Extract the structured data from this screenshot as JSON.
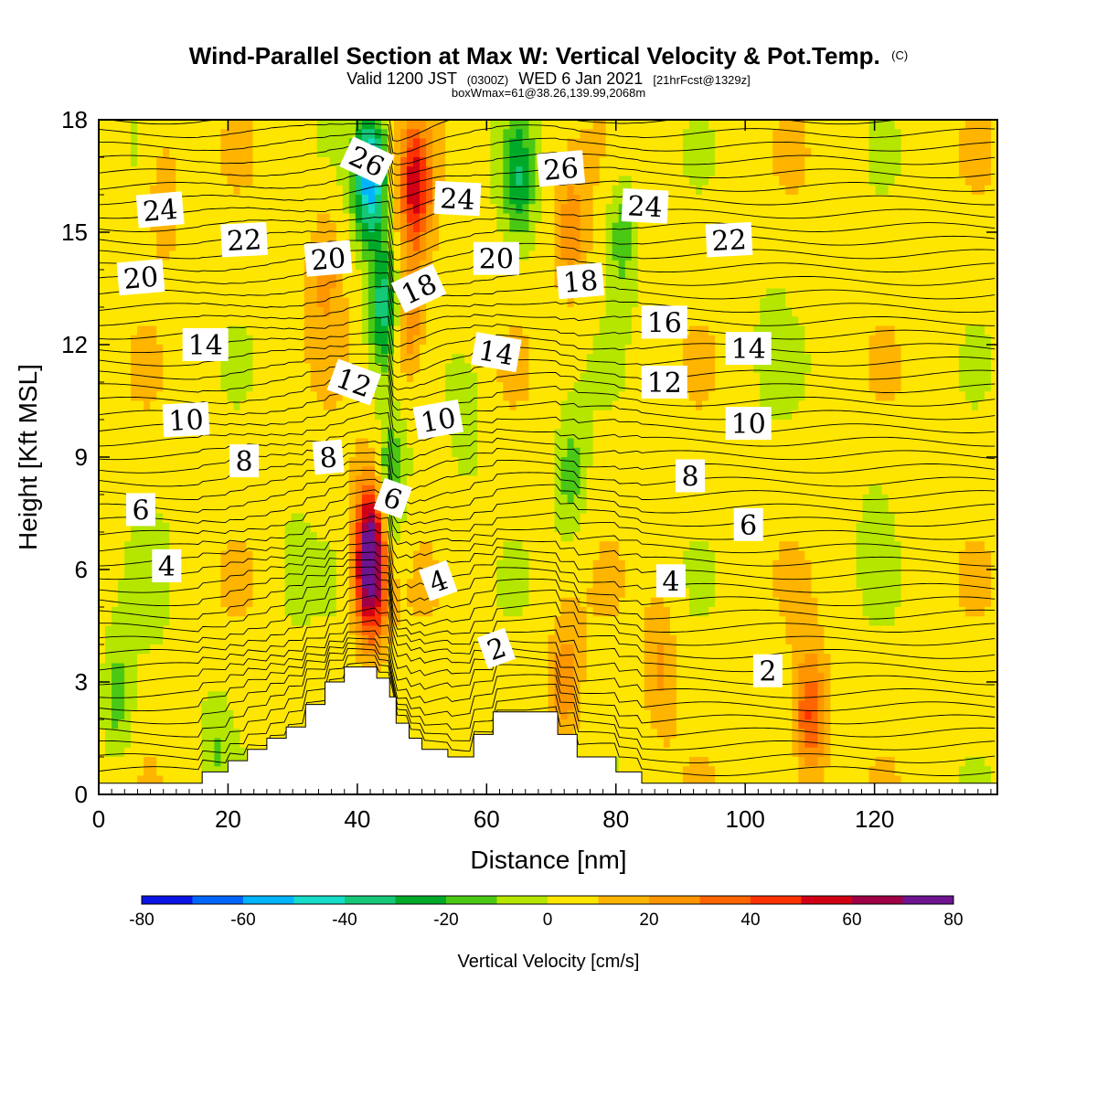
{
  "header": {
    "title": "Wind-Parallel Section at Max W: Vertical Velocity & Pot.Temp.",
    "title_mark": "(C)",
    "subtitle_a": "Valid 1200 JST",
    "subtitle_b": "(0300Z)",
    "subtitle_c": "WED 6 Jan 2021",
    "subtitle_d": "[21hrFcst@1329z]",
    "info": "boxWmax=61@38.26,139.99,2068m"
  },
  "chart_data": {
    "type": "heatmap",
    "title": "Wind-Parallel Section at Max W: Vertical Velocity & Pot.Temp.",
    "xlabel": "Distance [nm]",
    "ylabel": "Height [Kft MSL]",
    "xlim": [
      0,
      139
    ],
    "ylim": [
      0,
      18
    ],
    "xticks": [
      0,
      20,
      40,
      60,
      80,
      100,
      120
    ],
    "yticks": [
      0,
      3,
      6,
      9,
      12,
      15,
      18
    ],
    "colorbar": {
      "label": "Vertical Velocity [cm/s]",
      "ticks": [
        -80,
        -60,
        -40,
        -20,
        0,
        20,
        40,
        60,
        80
      ],
      "bins": [
        -80,
        -70,
        -60,
        -50,
        -40,
        -30,
        -20,
        -10,
        0,
        10,
        20,
        30,
        40,
        50,
        60,
        70,
        80
      ],
      "colors": [
        "#0a14e6",
        "#0066ff",
        "#00b4ff",
        "#14dcc8",
        "#14c878",
        "#00aa28",
        "#4bc814",
        "#b4e600",
        "#ffe600",
        "#ffb400",
        "#ff9600",
        "#ff6400",
        "#ff3200",
        "#d20014",
        "#a00046",
        "#6e1490"
      ]
    },
    "background_w": 5,
    "w_features": [
      {
        "x": 42,
        "z": 5.8,
        "w": 68
      },
      {
        "x": 42,
        "z": 7.3,
        "w": 35
      },
      {
        "x": 45,
        "z": 8.2,
        "w": -30
      },
      {
        "x": 44,
        "z": 13,
        "w": -40
      },
      {
        "x": 42,
        "z": 16.5,
        "w": -62
      },
      {
        "x": 49,
        "z": 16.2,
        "w": 48
      },
      {
        "x": 48,
        "z": 12.5,
        "w": 26
      },
      {
        "x": 35,
        "z": 14,
        "w": 18
      },
      {
        "x": 65,
        "z": 16.5,
        "w": -30
      },
      {
        "x": 73,
        "z": 15,
        "w": 22
      },
      {
        "x": 81,
        "z": 15,
        "w": -22
      },
      {
        "x": 72,
        "z": 3,
        "w": 22
      },
      {
        "x": 110,
        "z": 2,
        "w": 38
      },
      {
        "x": 87,
        "z": 3.5,
        "w": 18
      },
      {
        "x": 73,
        "z": 8.5,
        "w": -20
      },
      {
        "x": 10,
        "z": 16,
        "w": 16
      },
      {
        "x": 3,
        "z": 2.5,
        "w": -20
      },
      {
        "x": 18,
        "z": 1.3,
        "w": -12
      },
      {
        "x": 57,
        "z": 10,
        "w": -12
      },
      {
        "x": 104,
        "z": 12,
        "w": -8
      },
      {
        "x": 120,
        "z": 7,
        "w": -6
      },
      {
        "x": 30,
        "z": 6,
        "w": -8
      },
      {
        "x": 8,
        "z": 6,
        "w": -8
      }
    ],
    "terrain": {
      "x": [
        0,
        16,
        16,
        20,
        20,
        23,
        23,
        26,
        26,
        29,
        29,
        32,
        32,
        35,
        35,
        38,
        38,
        43,
        43,
        45,
        45,
        46,
        46,
        48,
        48,
        50,
        50,
        54,
        54,
        58,
        58,
        61,
        61,
        71,
        71,
        74,
        74,
        80,
        80,
        84,
        84,
        139
      ],
      "z": [
        0.3,
        0.3,
        0.6,
        0.6,
        0.9,
        0.9,
        1.2,
        1.2,
        1.5,
        1.5,
        1.8,
        1.8,
        2.4,
        2.4,
        3.0,
        3.0,
        3.4,
        3.4,
        3.1,
        3.1,
        2.6,
        2.6,
        1.9,
        1.9,
        1.5,
        1.5,
        1.2,
        1.2,
        1.0,
        1.0,
        1.6,
        1.6,
        2.2,
        2.2,
        1.6,
        1.6,
        1.0,
        1.0,
        0.6,
        0.6,
        0.3,
        0.3
      ]
    },
    "theta_label_text": [
      "26",
      "24",
      "22",
      "20",
      "18",
      "16",
      "14",
      "12",
      "10",
      "8",
      "6",
      "4",
      "2"
    ],
    "theta_labels": [
      {
        "text": "24",
        "x": 9.5,
        "z": 15.6,
        "rot": -5
      },
      {
        "text": "22",
        "x": 22.5,
        "z": 14.8,
        "rot": -3
      },
      {
        "text": "20",
        "x": 6.5,
        "z": 13.8,
        "rot": -5
      },
      {
        "text": "26",
        "x": 41.5,
        "z": 16.9,
        "rot": 25
      },
      {
        "text": "24",
        "x": 55.5,
        "z": 15.9,
        "rot": 3
      },
      {
        "text": "20",
        "x": 35.5,
        "z": 14.3,
        "rot": -5
      },
      {
        "text": "20",
        "x": 61.5,
        "z": 14.3,
        "rot": 0
      },
      {
        "text": "18",
        "x": 49.5,
        "z": 13.5,
        "rot": -25
      },
      {
        "text": "26",
        "x": 71.5,
        "z": 16.7,
        "rot": -5
      },
      {
        "text": "24",
        "x": 84.5,
        "z": 15.7,
        "rot": 3
      },
      {
        "text": "22",
        "x": 97.5,
        "z": 14.8,
        "rot": -3
      },
      {
        "text": "18",
        "x": 74.5,
        "z": 13.7,
        "rot": -5
      },
      {
        "text": "16",
        "x": 87.5,
        "z": 12.6,
        "rot": 0
      },
      {
        "text": "14",
        "x": 16.5,
        "z": 12,
        "rot": 0
      },
      {
        "text": "14",
        "x": 61.5,
        "z": 11.8,
        "rot": 10
      },
      {
        "text": "14",
        "x": 100.5,
        "z": 11.9,
        "rot": 0
      },
      {
        "text": "12",
        "x": 39.5,
        "z": 11,
        "rot": 20
      },
      {
        "text": "12",
        "x": 87.5,
        "z": 11,
        "rot": 0
      },
      {
        "text": "10",
        "x": 13.5,
        "z": 10,
        "rot": -3
      },
      {
        "text": "10",
        "x": 52.5,
        "z": 10,
        "rot": -10
      },
      {
        "text": "10",
        "x": 100.5,
        "z": 9.9,
        "rot": 0
      },
      {
        "text": "8",
        "x": 22.5,
        "z": 8.9,
        "rot": 0
      },
      {
        "text": "8",
        "x": 35.5,
        "z": 9,
        "rot": -5
      },
      {
        "text": "8",
        "x": 91.5,
        "z": 8.5,
        "rot": 0
      },
      {
        "text": "6",
        "x": 6.5,
        "z": 7.6,
        "rot": 0
      },
      {
        "text": "6",
        "x": 45.5,
        "z": 7.9,
        "rot": 20
      },
      {
        "text": "6",
        "x": 100.5,
        "z": 7.2,
        "rot": 0
      },
      {
        "text": "4",
        "x": 10.5,
        "z": 6.1,
        "rot": 0
      },
      {
        "text": "4",
        "x": 52.5,
        "z": 5.7,
        "rot": -20
      },
      {
        "text": "4",
        "x": 88.5,
        "z": 5.7,
        "rot": 0
      },
      {
        "text": "2",
        "x": 61.5,
        "z": 3.9,
        "rot": -20
      },
      {
        "text": "2",
        "x": 103.5,
        "z": 3.3,
        "rot": 0
      }
    ]
  }
}
